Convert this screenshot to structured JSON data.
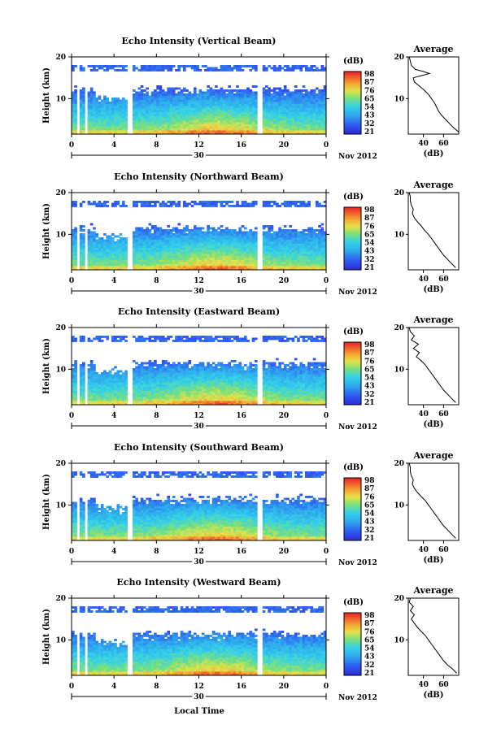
{
  "chart_data": [
    {
      "type": "heatmap",
      "title": "Echo Intensity (Vertical Beam)",
      "ylabel": "Height (km)",
      "x_ticks": [
        "0",
        "4",
        "8",
        "12",
        "16",
        "20",
        "0"
      ],
      "date_label": "30",
      "month_label": "Nov 2012",
      "xlim": [
        0,
        24
      ],
      "ylim": [
        1.5,
        20
      ],
      "y_ticks": [
        "20",
        "10"
      ],
      "colorbar": {
        "unit": "(dB)",
        "ticks": [
          "98",
          "87",
          "76",
          "65",
          "54",
          "43",
          "32",
          "21"
        ],
        "range": [
          21,
          98
        ]
      },
      "profile": {
        "title": "Average",
        "xlabel": "(dB)",
        "x_ticks": [
          "40",
          "60"
        ],
        "y_ticks": [
          "20",
          "10"
        ],
        "xlim": [
          25,
          75
        ],
        "heights": [
          2,
          3,
          4,
          5,
          6,
          7,
          8,
          9,
          10,
          11,
          12,
          13,
          14,
          15,
          15.5,
          16,
          16.5,
          17,
          18,
          19,
          20
        ],
        "values": [
          75,
          70,
          66,
          62,
          58,
          55,
          53,
          51,
          48,
          45,
          41,
          36,
          31,
          30,
          38,
          46,
          40,
          32,
          28,
          27,
          26
        ]
      }
    },
    {
      "type": "heatmap",
      "title": "Echo Intensity (Northward Beam)",
      "ylabel": "Height (km)",
      "x_ticks": [
        "0",
        "4",
        "8",
        "12",
        "16",
        "20",
        "0"
      ],
      "date_label": "30",
      "month_label": "Nov 2012",
      "xlim": [
        0,
        24
      ],
      "ylim": [
        1.5,
        20
      ],
      "y_ticks": [
        "20",
        "10"
      ],
      "colorbar": {
        "unit": "(dB)",
        "ticks": [
          "98",
          "87",
          "76",
          "65",
          "54",
          "43",
          "32",
          "21"
        ],
        "range": [
          21,
          98
        ]
      },
      "profile": {
        "title": "Average",
        "xlabel": "(dB)",
        "x_ticks": [
          "40",
          "60"
        ],
        "y_ticks": [
          "20",
          "10"
        ],
        "xlim": [
          25,
          75
        ],
        "heights": [
          2,
          3,
          4,
          5,
          6,
          7,
          8,
          9,
          10,
          11,
          12,
          13,
          14,
          15,
          16,
          17,
          18,
          19,
          20
        ],
        "values": [
          72,
          68,
          64,
          60,
          57,
          54,
          51,
          48,
          45,
          41,
          38,
          34,
          31,
          29,
          30,
          28,
          27,
          27,
          26
        ]
      }
    },
    {
      "type": "heatmap",
      "title": "Echo Intensity (Eastward Beam)",
      "ylabel": "Height (km)",
      "x_ticks": [
        "0",
        "4",
        "8",
        "12",
        "16",
        "20",
        "0"
      ],
      "date_label": "30",
      "month_label": "Nov 2012",
      "xlim": [
        0,
        24
      ],
      "ylim": [
        1.5,
        20
      ],
      "y_ticks": [
        "20",
        "10"
      ],
      "colorbar": {
        "unit": "(dB)",
        "ticks": [
          "98",
          "87",
          "76",
          "65",
          "54",
          "43",
          "32",
          "21"
        ],
        "range": [
          21,
          98
        ]
      },
      "profile": {
        "title": "Average",
        "xlabel": "(dB)",
        "x_ticks": [
          "40",
          "60"
        ],
        "y_ticks": [
          "20",
          "10"
        ],
        "xlim": [
          25,
          75
        ],
        "heights": [
          2,
          3,
          4,
          5,
          6,
          7,
          8,
          9,
          10,
          11,
          12,
          13,
          14,
          15,
          16,
          17,
          18,
          19,
          20
        ],
        "values": [
          72,
          68,
          64,
          60,
          57,
          54,
          51,
          48,
          45,
          42,
          38,
          33,
          36,
          30,
          35,
          28,
          31,
          27,
          26
        ]
      }
    },
    {
      "type": "heatmap",
      "title": "Echo Intensity (Southward Beam)",
      "ylabel": "Height (km)",
      "x_ticks": [
        "0",
        "4",
        "8",
        "12",
        "16",
        "20",
        "0"
      ],
      "date_label": "30",
      "month_label": "Nov 2012",
      "xlim": [
        0,
        24
      ],
      "ylim": [
        1.5,
        20
      ],
      "y_ticks": [
        "20",
        "10"
      ],
      "colorbar": {
        "unit": "(dB)",
        "ticks": [
          "98",
          "87",
          "76",
          "65",
          "54",
          "43",
          "32",
          "21"
        ],
        "range": [
          21,
          98
        ]
      },
      "profile": {
        "title": "Average",
        "xlabel": "(dB)",
        "x_ticks": [
          "40",
          "60"
        ],
        "y_ticks": [
          "20",
          "10"
        ],
        "xlim": [
          25,
          75
        ],
        "heights": [
          2,
          3,
          4,
          5,
          6,
          7,
          8,
          9,
          10,
          11,
          12,
          13,
          14,
          15,
          16,
          17,
          18,
          19,
          20
        ],
        "values": [
          72,
          68,
          64,
          60,
          57,
          54,
          51,
          48,
          45,
          42,
          38,
          34,
          31,
          29,
          30,
          28,
          27,
          27,
          26
        ]
      }
    },
    {
      "type": "heatmap",
      "title": "Echo Intensity (Westward Beam)",
      "ylabel": "Height (km)",
      "x_ticks": [
        "0",
        "4",
        "8",
        "12",
        "16",
        "20",
        "0"
      ],
      "date_label": "30",
      "month_label": "Nov 2012",
      "xlim": [
        0,
        24
      ],
      "ylim": [
        1.5,
        20
      ],
      "y_ticks": [
        "20",
        "10"
      ],
      "colorbar": {
        "unit": "(dB)",
        "ticks": [
          "98",
          "87",
          "76",
          "65",
          "54",
          "43",
          "32",
          "21"
        ],
        "range": [
          21,
          98
        ]
      },
      "profile": {
        "title": "Average",
        "xlabel": "(dB)",
        "x_ticks": [
          "40",
          "60"
        ],
        "y_ticks": [
          "20",
          "10"
        ],
        "xlim": [
          25,
          75
        ],
        "heights": [
          2,
          3,
          4,
          5,
          6,
          7,
          8,
          9,
          10,
          11,
          12,
          13,
          14,
          15,
          16,
          17,
          18,
          19,
          20
        ],
        "values": [
          73,
          69,
          64,
          60,
          57,
          54,
          51,
          48,
          45,
          42,
          38,
          34,
          31,
          28,
          31,
          27,
          30,
          26,
          27
        ]
      }
    }
  ],
  "xlabel": "Local Time"
}
